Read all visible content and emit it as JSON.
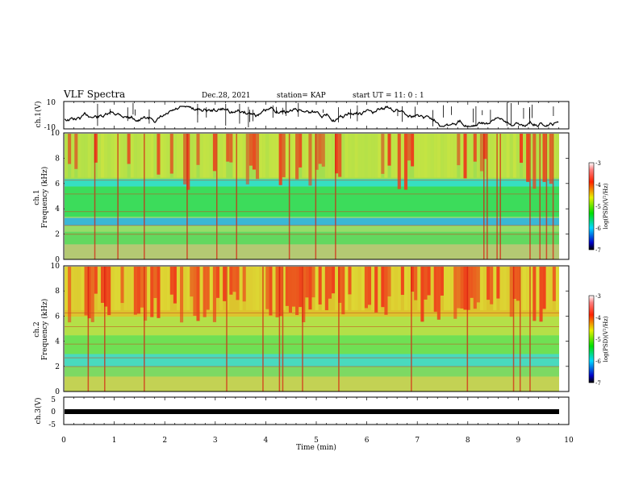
{
  "header": {
    "title": "VLF Spectra",
    "date": "Dec.28, 2021",
    "station": "station= KAP",
    "start": "start  UT =   11: 0  : 1"
  },
  "chart_data": [
    {
      "type": "line",
      "ylabel": "ch.1(V)",
      "ylim": [
        -10,
        10
      ],
      "yticks": [
        10,
        -10
      ],
      "xlim": [
        0,
        10
      ],
      "series_color": "#000000"
    },
    {
      "type": "heatmap",
      "ylabel": "Frequency  (kHz)",
      "channel": "ch.1",
      "ylim": [
        0,
        10
      ],
      "yticks": [
        0,
        2,
        4,
        6,
        8,
        10
      ],
      "xlim": [
        0,
        10
      ],
      "colorbar": {
        "label": "log(PSD)(V²/Hz)",
        "ticks": [
          -3,
          -4,
          -5,
          -6,
          -7
        ],
        "range": [
          -7,
          -3
        ]
      }
    },
    {
      "type": "heatmap",
      "ylabel": "Frequency  (kHz)",
      "channel": "ch.2",
      "ylim": [
        0,
        10
      ],
      "yticks": [
        0,
        2,
        4,
        6,
        8,
        10
      ],
      "xlim": [
        0,
        10
      ],
      "colorbar": {
        "label": "log(PSD)(V²/Hz)",
        "ticks": [
          -3,
          -4,
          -5,
          -6,
          -7
        ],
        "range": [
          -7,
          -3
        ]
      }
    },
    {
      "type": "line",
      "ylabel": "ch.3(V)",
      "ylim": [
        -5,
        5
      ],
      "yticks": [
        5,
        0,
        -5
      ],
      "xlim": [
        0,
        10
      ],
      "xlabel": "Time  (min)",
      "xticks": [
        "0",
        "1",
        "2",
        "3",
        "4",
        "5",
        "6",
        "7",
        "8",
        "9",
        "10"
      ],
      "series_color": "#000000"
    }
  ]
}
